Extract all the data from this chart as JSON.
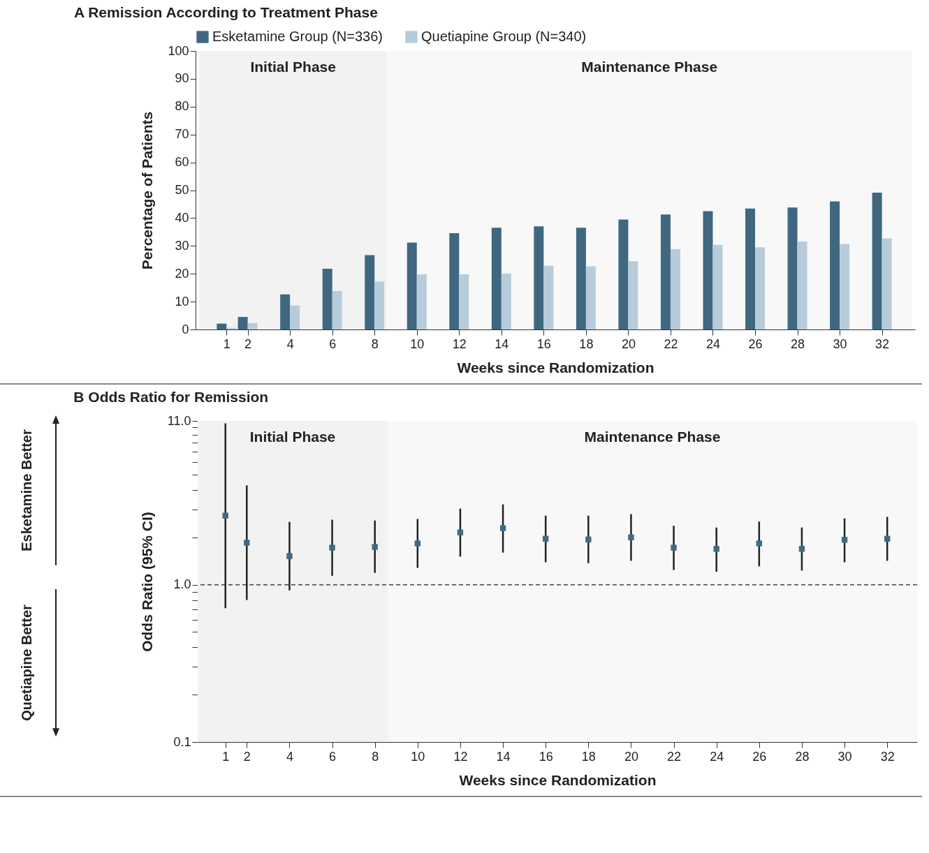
{
  "chart_data": [
    {
      "type": "bar",
      "title": "A  Remission According to Treatment Phase",
      "xlabel": "Weeks since Randomization",
      "ylabel": "Percentage of Patients",
      "x": [
        1,
        2,
        4,
        6,
        8,
        10,
        12,
        14,
        16,
        18,
        20,
        22,
        24,
        26,
        28,
        30,
        32
      ],
      "series": [
        {
          "name": "Esketamine Group (N=336)",
          "color": "#3f6880",
          "values": [
            2.1,
            4.5,
            12.6,
            21.8,
            26.7,
            31.2,
            34.6,
            36.5,
            37.0,
            36.5,
            39.5,
            41.3,
            42.5,
            43.4,
            43.8,
            46.0,
            49.1
          ]
        },
        {
          "name": "Quetiapine Group (N=340)",
          "color": "#b7ccdb",
          "values": [
            0.6,
            2.3,
            8.6,
            13.8,
            17.2,
            19.8,
            19.8,
            20.1,
            22.9,
            22.7,
            24.5,
            28.9,
            30.4,
            29.5,
            31.6,
            30.7,
            32.7
          ]
        }
      ],
      "xlim": [
        -0.3,
        33.4
      ],
      "xticks": [
        1,
        2,
        4,
        6,
        8,
        10,
        12,
        14,
        16,
        18,
        20,
        22,
        24,
        26,
        28,
        30,
        32
      ],
      "ylim": [
        0,
        100
      ],
      "yticks": [
        0,
        10,
        20,
        30,
        40,
        50,
        60,
        70,
        80,
        90,
        100
      ],
      "bands": [
        {
          "axis": "x",
          "from": -0.3,
          "to": 8.6,
          "label": "Initial Phase",
          "color": "#f2f2f2"
        },
        {
          "axis": "x",
          "from": 8.6,
          "to": 33.4,
          "label": "Maintenance Phase",
          "color": "#f8f8f8"
        }
      ],
      "legend": "top",
      "grid": false
    },
    {
      "type": "scatter",
      "title": "B  Odds Ratio for Remission",
      "xlabel": "Weeks since Randomization",
      "ylabel": "Odds Ratio (95% CI)",
      "annotations": [
        "Esketamine Better",
        "Quetiapine Better"
      ],
      "x": [
        1,
        2,
        4,
        6,
        8,
        10,
        12,
        14,
        16,
        18,
        20,
        22,
        24,
        26,
        28,
        30,
        32
      ],
      "series": [
        {
          "color": "#3f6a85",
          "values": [
            2.75,
            1.85,
            1.52,
            1.72,
            1.74,
            1.83,
            2.15,
            2.29,
            1.96,
            1.94,
            2.0,
            1.72,
            1.69,
            1.83,
            1.69,
            1.93,
            1.96
          ],
          "errors": [
            [
              0.71,
              10.6
            ],
            [
              0.8,
              4.28
            ],
            [
              0.92,
              2.51
            ],
            [
              1.14,
              2.59
            ],
            [
              1.19,
              2.56
            ],
            [
              1.28,
              2.62
            ],
            [
              1.51,
              3.05
            ],
            [
              1.6,
              3.24
            ],
            [
              1.39,
              2.75
            ],
            [
              1.37,
              2.75
            ],
            [
              1.42,
              2.81
            ],
            [
              1.24,
              2.37
            ],
            [
              1.21,
              2.31
            ],
            [
              1.31,
              2.52
            ],
            [
              1.23,
              2.31
            ],
            [
              1.39,
              2.64
            ],
            [
              1.42,
              2.7
            ]
          ]
        }
      ],
      "marker": "square",
      "log": "y",
      "xlim": [
        -0.3,
        33.4
      ],
      "xticks": [
        1,
        2,
        4,
        6,
        8,
        10,
        12,
        14,
        16,
        18,
        20,
        22,
        24,
        26,
        28,
        30,
        32
      ],
      "ylim": [
        0.1,
        11
      ],
      "yticks": [
        0.1,
        {
          "value": 0.2,
          "label": null
        },
        {
          "value": 0.3,
          "label": null
        },
        {
          "value": 0.4,
          "label": null
        },
        {
          "value": 0.5,
          "label": null
        },
        {
          "value": 0.6,
          "label": null
        },
        {
          "value": 0.7,
          "label": null
        },
        {
          "value": 0.8,
          "label": null
        },
        {
          "value": 0.9,
          "label": null
        },
        {
          "value": 1,
          "label": "1.0"
        },
        {
          "value": 2,
          "label": null
        },
        {
          "value": 3,
          "label": null
        },
        {
          "value": 4,
          "label": null
        },
        {
          "value": 5,
          "label": null
        },
        {
          "value": 6,
          "label": null
        },
        {
          "value": 7,
          "label": null
        },
        {
          "value": 8,
          "label": null
        },
        {
          "value": 9,
          "label": null
        },
        {
          "value": 10,
          "label": null
        },
        {
          "value": 11,
          "label": "11.0"
        }
      ],
      "ref_lines": [
        {
          "axis": "y",
          "value": 1,
          "line_style": "dashed",
          "color": "#444444"
        }
      ],
      "bands": [
        {
          "axis": "x",
          "from": -0.3,
          "to": 8.6,
          "label": "Initial Phase",
          "color": "#f2f2f2"
        },
        {
          "axis": "x",
          "from": 8.6,
          "to": 33.4,
          "label": "Maintenance Phase",
          "color": "#f8f8f8"
        }
      ],
      "legend": false,
      "grid": false
    }
  ]
}
